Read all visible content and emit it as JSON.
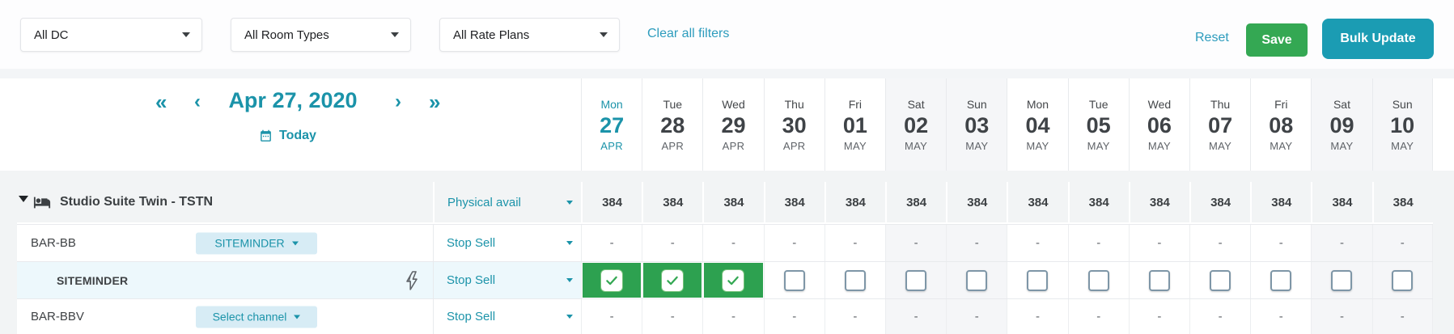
{
  "filter_bar": {
    "dc_filter": {
      "value": "All DC"
    },
    "room_type_filter": {
      "value": "All Room Types"
    },
    "rate_plan_filter": {
      "value": "All Rate Plans"
    },
    "clear_all_filters_label": "Clear all filters",
    "reset_label": "Reset",
    "save_label": "Save",
    "bulk_update_label": "Bulk Update"
  },
  "date_nav": {
    "selected_date": "Apr 27, 2020",
    "today_label": "Today",
    "prev_week_icon": "«",
    "prev_day_icon": "‹",
    "next_day_icon": "›",
    "next_week_icon": "»"
  },
  "calendar_columns": [
    {
      "dow": "Mon",
      "day": "27",
      "month": "APR",
      "selected": true,
      "weekend": false
    },
    {
      "dow": "Tue",
      "day": "28",
      "month": "APR",
      "selected": false,
      "weekend": false
    },
    {
      "dow": "Wed",
      "day": "29",
      "month": "APR",
      "selected": false,
      "weekend": false
    },
    {
      "dow": "Thu",
      "day": "30",
      "month": "APR",
      "selected": false,
      "weekend": false
    },
    {
      "dow": "Fri",
      "day": "01",
      "month": "MAY",
      "selected": false,
      "weekend": false
    },
    {
      "dow": "Sat",
      "day": "02",
      "month": "MAY",
      "selected": false,
      "weekend": true
    },
    {
      "dow": "Sun",
      "day": "03",
      "month": "MAY",
      "selected": false,
      "weekend": true
    },
    {
      "dow": "Mon",
      "day": "04",
      "month": "MAY",
      "selected": false,
      "weekend": false
    },
    {
      "dow": "Tue",
      "day": "05",
      "month": "MAY",
      "selected": false,
      "weekend": false
    },
    {
      "dow": "Wed",
      "day": "06",
      "month": "MAY",
      "selected": false,
      "weekend": false
    },
    {
      "dow": "Thu",
      "day": "07",
      "month": "MAY",
      "selected": false,
      "weekend": false
    },
    {
      "dow": "Fri",
      "day": "08",
      "month": "MAY",
      "selected": false,
      "weekend": false
    },
    {
      "dow": "Sat",
      "day": "09",
      "month": "MAY",
      "selected": false,
      "weekend": true
    },
    {
      "dow": "Sun",
      "day": "10",
      "month": "MAY",
      "selected": false,
      "weekend": true
    }
  ],
  "grid": {
    "room_group": {
      "title": "Studio Suite Twin - TSTN",
      "metric_selector": "Physical avail",
      "values": [
        "384",
        "384",
        "384",
        "384",
        "384",
        "384",
        "384",
        "384",
        "384",
        "384",
        "384",
        "384",
        "384",
        "384"
      ]
    },
    "rows": [
      {
        "label": "BAR-BB",
        "channel_chip": "SITEMINDER",
        "selector": "Stop Sell",
        "cell_type": "dash",
        "values": [
          "-",
          "-",
          "-",
          "-",
          "-",
          "-",
          "-",
          "-",
          "-",
          "-",
          "-",
          "-",
          "-",
          "-"
        ]
      },
      {
        "label": "SITEMINDER",
        "selector": "Stop Sell",
        "cell_type": "checkbox",
        "checked": [
          true,
          true,
          true,
          false,
          false,
          false,
          false,
          false,
          false,
          false,
          false,
          false,
          false,
          false
        ]
      },
      {
        "label": "BAR-BBV",
        "channel_chip": "Select channel",
        "selector": "Stop Sell",
        "cell_type": "dash",
        "values": [
          "-",
          "-",
          "-",
          "-",
          "-",
          "-",
          "-",
          "-",
          "-",
          "-",
          "-",
          "-",
          "-",
          "-"
        ]
      }
    ]
  },
  "colors": {
    "teal_primary": "#1b93a9",
    "teal_link": "#2d9cbd",
    "teal_button": "#1b9cb3",
    "green_button": "#34a853",
    "green_cell": "#2da150",
    "chip_bg": "#d7ecf5",
    "blue_row_bg": "#edf8fc",
    "weekend_bg": "#f5f6f8",
    "grid_bg": "#f2f4f5",
    "border": "#e8eaed",
    "text_dark": "#3c4043",
    "text_gray": "#5f6368"
  }
}
